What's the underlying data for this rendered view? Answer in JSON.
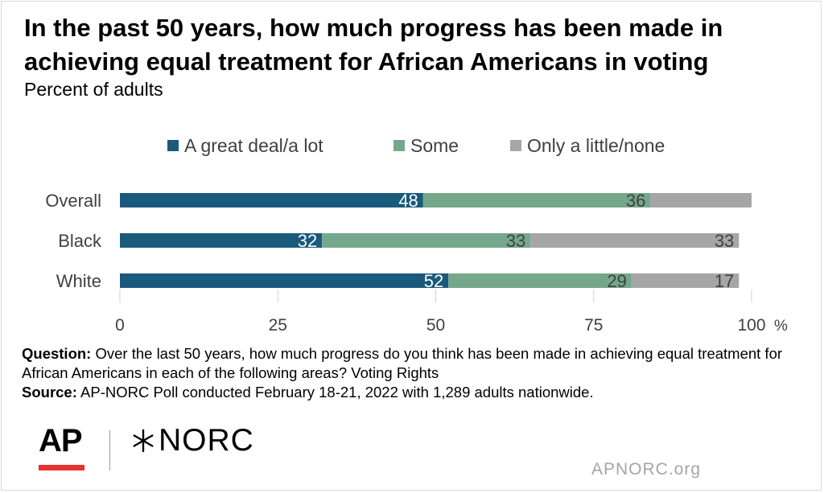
{
  "title": "In the past 50 years, how much progress has been made in achieving equal treatment for African Americans in voting",
  "subtitle": "Percent of adults",
  "chart_data": {
    "type": "bar",
    "orientation": "horizontal",
    "stacked": true,
    "categories": [
      "Overall",
      "Black",
      "White"
    ],
    "series": [
      {
        "name": "A great deal/a lot",
        "values": [
          48,
          32,
          52
        ],
        "color": "#1a5a7d"
      },
      {
        "name": "Some",
        "values": [
          36,
          33,
          29
        ],
        "color": "#75a88a"
      },
      {
        "name": "Only a little/none",
        "values": [
          16,
          33,
          17
        ],
        "color": "#a6a6a6"
      }
    ],
    "data_labels": [
      [
        "48",
        "36",
        ""
      ],
      [
        "32",
        "33",
        "33"
      ],
      [
        "52",
        "29",
        "17"
      ]
    ],
    "xlim": [
      0,
      100
    ],
    "x_ticks": [
      "0",
      "25",
      "50",
      "75",
      "100"
    ],
    "x_unit": "%",
    "legend_position": "top",
    "grid": false
  },
  "notes": {
    "question_label": "Question:",
    "question_text": "Over the last 50 years, how much progress do you think has been made in achieving equal treatment for African Americans in each of the following areas? Voting Rights",
    "source_label": "Source:",
    "source_text": "AP-NORC Poll conducted February 18-21, 2022 with 1,289 adults nationwide."
  },
  "footer": {
    "ap_logo": "AP",
    "norc_logo": "NORC",
    "norc_mark_icon": "asterisk-star-icon",
    "website": "APNORC.org",
    "accent_color": "#e8322f"
  }
}
